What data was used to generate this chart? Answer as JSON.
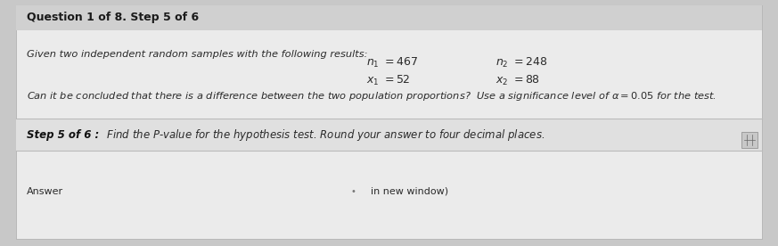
{
  "title": "Question 1 of 8. Step 5 of 6",
  "outer_bg": "#c8c8c8",
  "title_bar_color": "#d0d0d0",
  "card_color": "#ebebeb",
  "step_bar_color": "#e0e0e0",
  "footer_bar_color": "#d4d4d4",
  "divider_color": "#bbbbbb",
  "title_color": "#1a1a1a",
  "text_color": "#2a2a2a",
  "bold_color": "#111111",
  "line1": "Given two independent random samples with the following results:",
  "eq_n1": "$n_1 \\ = 467$",
  "eq_n2": "$n_2 \\ = 248$",
  "eq_x1": "$x_1 \\ = 52$",
  "eq_x2": "$x_2 \\ = 88$",
  "line2a": "Can it be concluded that there is a difference between the two population proportions?  Use a significance level of",
  "line2b": "$\\alpha = 0.05$",
  "line2c": "for the test.",
  "step_label": "Step 5 of 6 :",
  "step_text": "  Find the $P$-value for the hypothesis test. Round your answer to four decimal places.",
  "footer_left": "Answer",
  "footer_center": "•",
  "footer_right": "in new window)"
}
